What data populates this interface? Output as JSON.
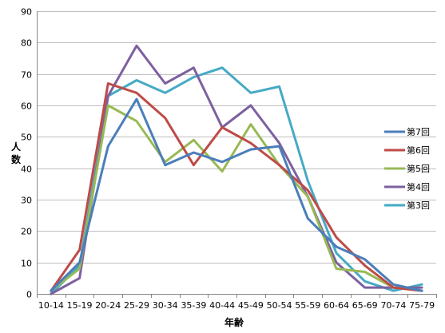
{
  "chart_data": {
    "type": "line",
    "title": "",
    "xlabel": "年齢",
    "ylabel": "人数",
    "ylim": [
      0,
      90
    ],
    "yticks": [
      0,
      10,
      20,
      30,
      40,
      50,
      60,
      70,
      80,
      90
    ],
    "grid": "horizontal",
    "legend_position": "right",
    "categories": [
      "10-14",
      "15-19",
      "20-24",
      "25-29",
      "30-34",
      "35-39",
      "40-44",
      "45-49",
      "50-54",
      "55-59",
      "60-64",
      "65-69",
      "70-74",
      "75-79"
    ],
    "series": [
      {
        "name": "第7回",
        "color": "#4a7ebb",
        "values": [
          1,
          10,
          47,
          62,
          41,
          45,
          42,
          46,
          47,
          24,
          15,
          11,
          3,
          1
        ]
      },
      {
        "name": "第6回",
        "color": "#be4b48",
        "values": [
          1,
          14,
          67,
          64,
          56,
          41,
          53,
          48,
          41,
          33,
          18,
          9,
          2,
          1
        ]
      },
      {
        "name": "第5回",
        "color": "#98b954",
        "values": [
          1,
          8,
          60,
          55,
          42,
          49,
          39,
          54,
          41,
          31,
          8,
          7,
          2,
          1
        ]
      },
      {
        "name": "第4回",
        "color": "#7d60a0",
        "values": [
          0,
          5,
          63,
          79,
          67,
          72,
          53,
          60,
          48,
          31,
          10,
          2,
          2,
          2
        ]
      },
      {
        "name": "第3回",
        "color": "#46aac5",
        "values": [
          0,
          9,
          63,
          68,
          64,
          69,
          72,
          64,
          66,
          36,
          13,
          4,
          1,
          3
        ]
      }
    ]
  }
}
